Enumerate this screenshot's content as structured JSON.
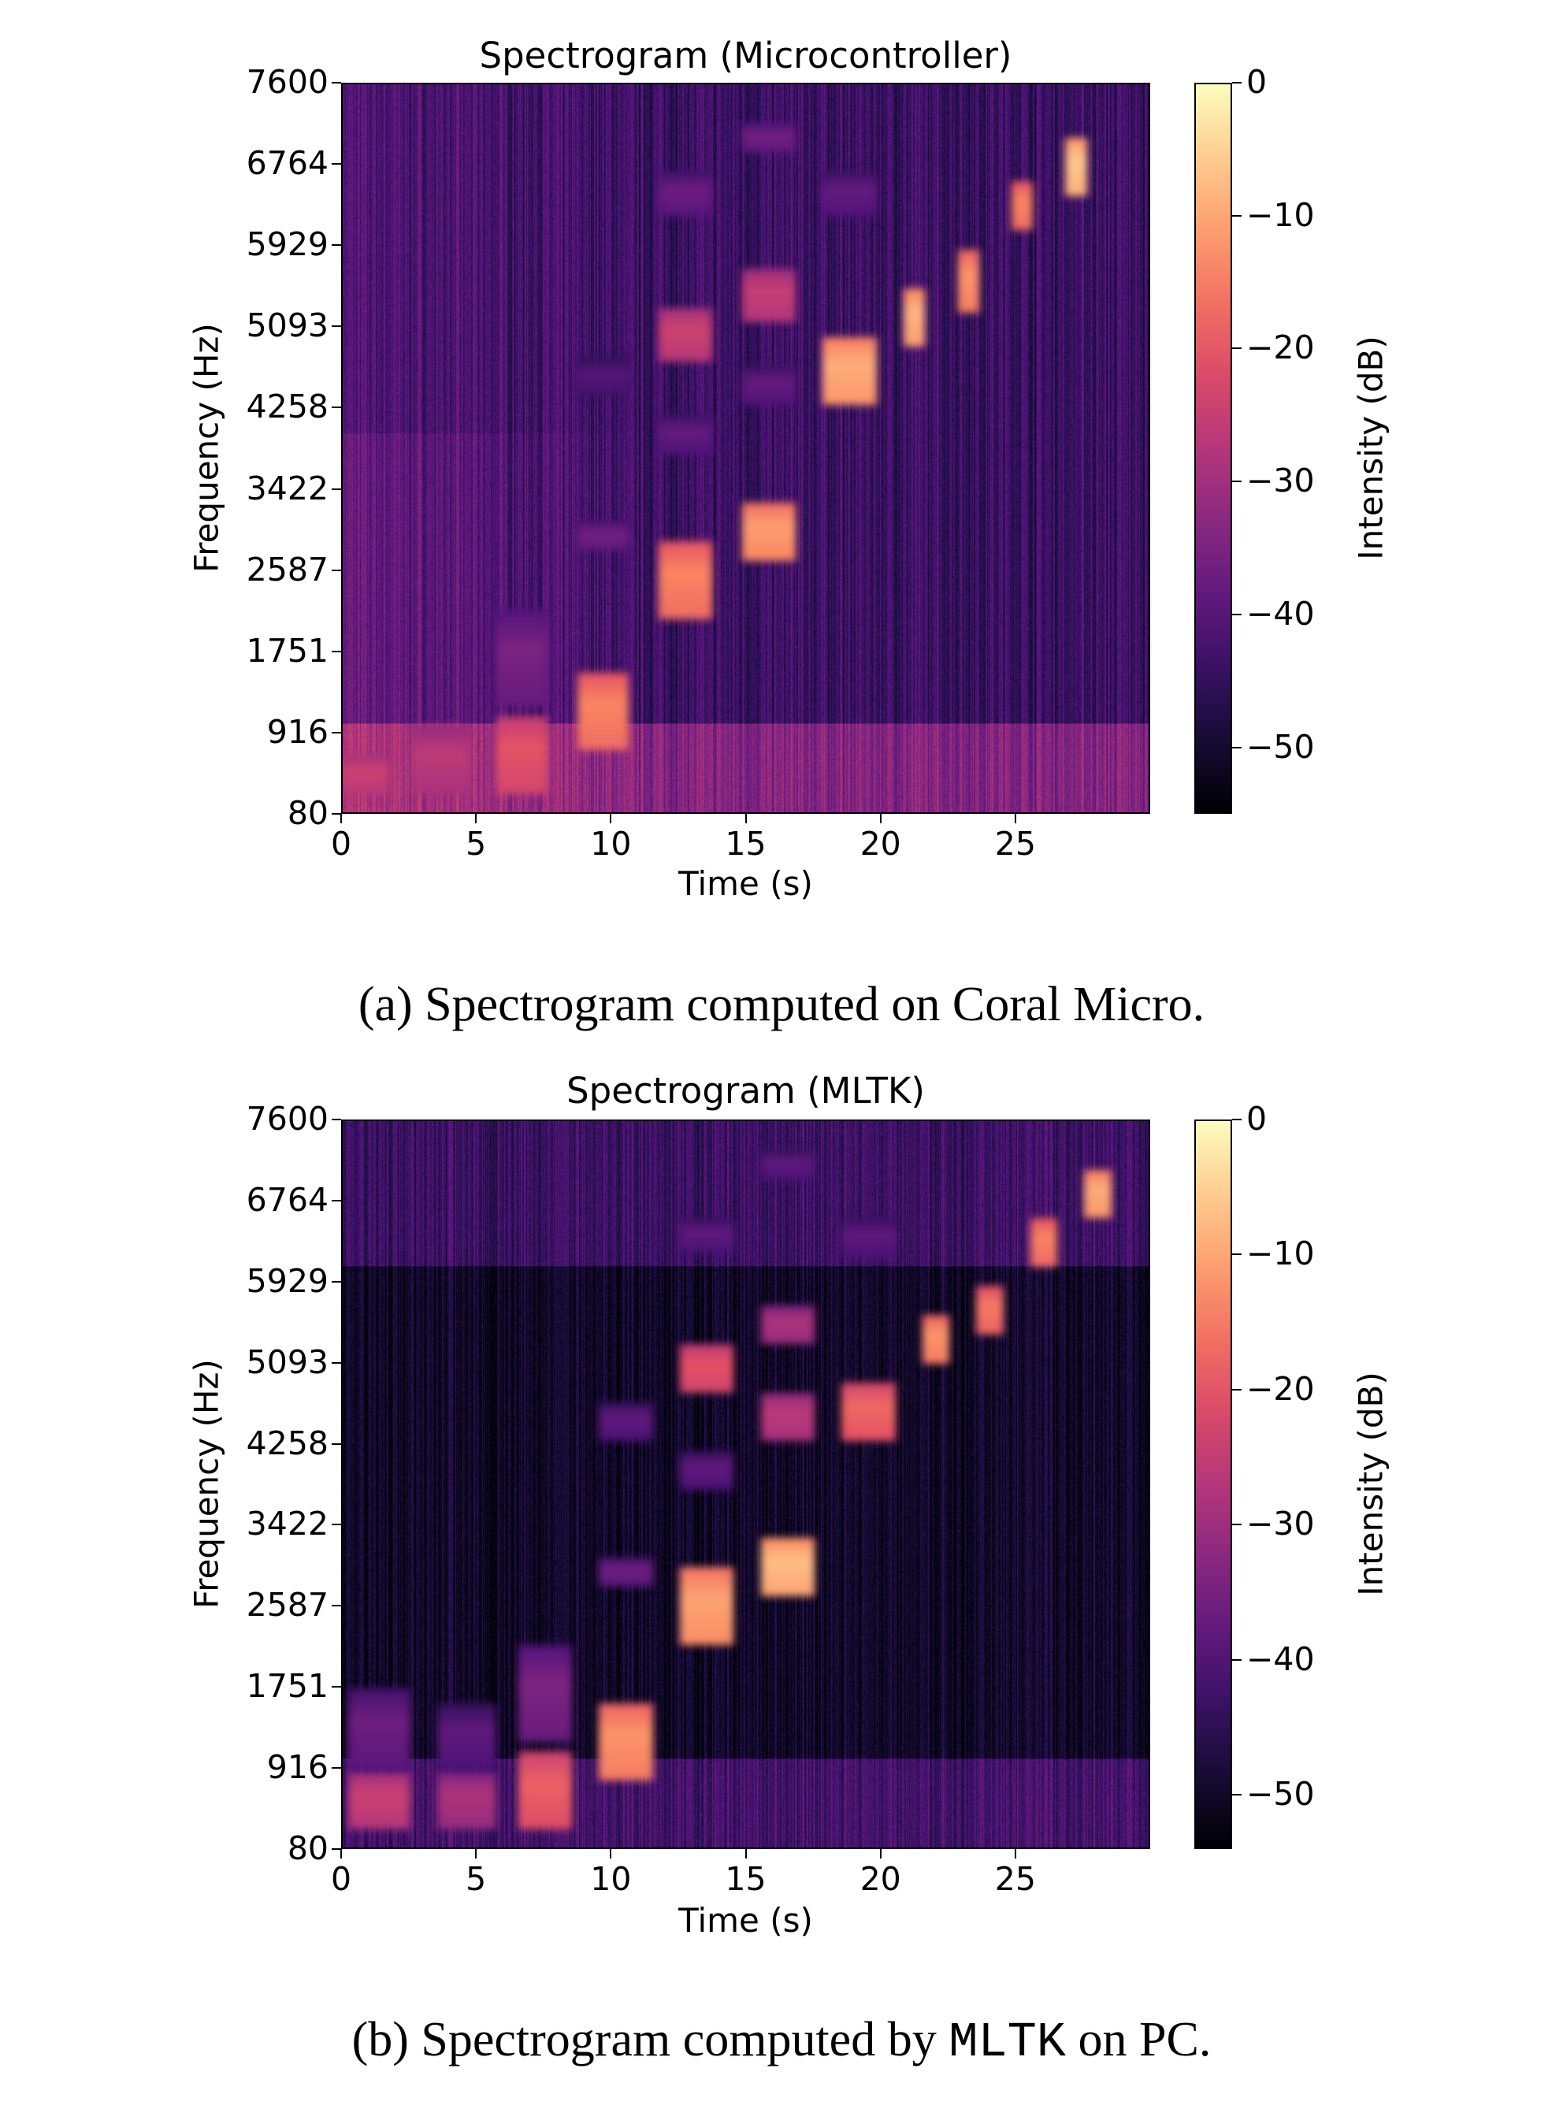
{
  "chart_data": [
    {
      "type": "heatmap",
      "title": "Spectrogram (Microcontroller)",
      "xlabel": "Time (s)",
      "ylabel": "Frequency (Hz)",
      "colorbar_label": "Intensity (dB)",
      "colormap": "magma",
      "xlim": [
        0,
        30
      ],
      "ylim": [
        80,
        7600
      ],
      "clim": [
        -55,
        0
      ],
      "xticks": [
        "0",
        "5",
        "10",
        "15",
        "20",
        "25"
      ],
      "yticks": [
        "80",
        "916",
        "1751",
        "2587",
        "3422",
        "4258",
        "5093",
        "5929",
        "6764",
        "7600"
      ],
      "cticks": [
        "0",
        "−10",
        "−20",
        "−30",
        "−40",
        "−50"
      ],
      "background": {
        "low_band_db": -34,
        "mid_db": -44,
        "high_db": -50
      },
      "events": [
        {
          "t": [
            0,
            1.7
          ],
          "f": [
            300,
            700
          ],
          "db": -24
        },
        {
          "t": [
            2.6,
            4.7
          ],
          "f": [
            300,
            1000
          ],
          "db": -26
        },
        {
          "t": [
            5.7,
            7.6
          ],
          "f": [
            300,
            1100
          ],
          "db": -20
        },
        {
          "t": [
            5.7,
            7.6
          ],
          "f": [
            1200,
            2200
          ],
          "db": -35
        },
        {
          "t": [
            8.7,
            10.6
          ],
          "f": [
            750,
            1550
          ],
          "db": -14
        },
        {
          "t": [
            8.7,
            10.6
          ],
          "f": [
            2800,
            3100
          ],
          "db": -36
        },
        {
          "t": [
            8.7,
            10.6
          ],
          "f": [
            4400,
            4800
          ],
          "db": -40
        },
        {
          "t": [
            11.7,
            13.7
          ],
          "f": [
            2100,
            2900
          ],
          "db": -14
        },
        {
          "t": [
            11.7,
            13.7
          ],
          "f": [
            4750,
            5300
          ],
          "db": -24
        },
        {
          "t": [
            11.7,
            13.7
          ],
          "f": [
            3800,
            4200
          ],
          "db": -38
        },
        {
          "t": [
            11.7,
            13.7
          ],
          "f": [
            6250,
            6700
          ],
          "db": -37
        },
        {
          "t": [
            14.8,
            16.8
          ],
          "f": [
            2700,
            3300
          ],
          "db": -11
        },
        {
          "t": [
            14.8,
            16.8
          ],
          "f": [
            5150,
            5700
          ],
          "db": -25
        },
        {
          "t": [
            14.8,
            16.8
          ],
          "f": [
            4300,
            4700
          ],
          "db": -38
        },
        {
          "t": [
            14.8,
            16.8
          ],
          "f": [
            6900,
            7200
          ],
          "db": -36
        },
        {
          "t": [
            17.8,
            19.8
          ],
          "f": [
            4300,
            5000
          ],
          "db": -9
        },
        {
          "t": [
            17.8,
            19.8
          ],
          "f": [
            6250,
            6700
          ],
          "db": -38
        },
        {
          "t": [
            20.8,
            21.6
          ],
          "f": [
            4900,
            5500
          ],
          "db": -8
        },
        {
          "t": [
            22.8,
            23.6
          ],
          "f": [
            5250,
            5900
          ],
          "db": -12
        },
        {
          "t": [
            24.8,
            25.6
          ],
          "f": [
            6100,
            6600
          ],
          "db": -14
        },
        {
          "t": [
            26.8,
            27.6
          ],
          "f": [
            6450,
            7050
          ],
          "db": -6
        }
      ]
    },
    {
      "type": "heatmap",
      "title": "Spectrogram (MLTK)",
      "xlabel": "Time (s)",
      "ylabel": "Frequency (Hz)",
      "colorbar_label": "Intensity (dB)",
      "colormap": "magma",
      "xlim": [
        0,
        30
      ],
      "ylim": [
        80,
        7600
      ],
      "clim": [
        -54,
        0
      ],
      "xticks": [
        "0",
        "5",
        "10",
        "15",
        "20",
        "25"
      ],
      "yticks": [
        "80",
        "916",
        "1751",
        "2587",
        "3422",
        "4258",
        "5093",
        "5929",
        "6764",
        "7600"
      ],
      "cticks": [
        "0",
        "−10",
        "−20",
        "−30",
        "−40",
        "−50"
      ],
      "background": {
        "low_band_db": -42,
        "mid_db": -50,
        "high_db": -43
      },
      "events": [
        {
          "t": [
            0.2,
            2.5
          ],
          "f": [
            300,
            900
          ],
          "db": -24
        },
        {
          "t": [
            0.2,
            2.5
          ],
          "f": [
            900,
            1750
          ],
          "db": -36
        },
        {
          "t": [
            3.5,
            5.7
          ],
          "f": [
            300,
            900
          ],
          "db": -28
        },
        {
          "t": [
            3.5,
            5.7
          ],
          "f": [
            900,
            1600
          ],
          "db": -38
        },
        {
          "t": [
            6.5,
            8.5
          ],
          "f": [
            300,
            1100
          ],
          "db": -18
        },
        {
          "t": [
            6.5,
            8.5
          ],
          "f": [
            1200,
            2200
          ],
          "db": -34
        },
        {
          "t": [
            9.5,
            11.5
          ],
          "f": [
            800,
            1600
          ],
          "db": -12
        },
        {
          "t": [
            9.5,
            11.5
          ],
          "f": [
            2800,
            3100
          ],
          "db": -36
        },
        {
          "t": [
            9.5,
            11.5
          ],
          "f": [
            4300,
            4700
          ],
          "db": -38
        },
        {
          "t": [
            12.5,
            14.5
          ],
          "f": [
            2200,
            3000
          ],
          "db": -10
        },
        {
          "t": [
            12.5,
            14.5
          ],
          "f": [
            4800,
            5300
          ],
          "db": -20
        },
        {
          "t": [
            12.5,
            14.5
          ],
          "f": [
            3800,
            4200
          ],
          "db": -38
        },
        {
          "t": [
            12.5,
            14.5
          ],
          "f": [
            6250,
            6600
          ],
          "db": -38
        },
        {
          "t": [
            15.5,
            17.5
          ],
          "f": [
            2700,
            3300
          ],
          "db": -7
        },
        {
          "t": [
            15.5,
            17.5
          ],
          "f": [
            4300,
            4800
          ],
          "db": -26
        },
        {
          "t": [
            15.5,
            17.5
          ],
          "f": [
            5300,
            5700
          ],
          "db": -28
        },
        {
          "t": [
            15.5,
            17.5
          ],
          "f": [
            7000,
            7300
          ],
          "db": -38
        },
        {
          "t": [
            18.5,
            20.5
          ],
          "f": [
            4300,
            4900
          ],
          "db": -17
        },
        {
          "t": [
            18.5,
            20.5
          ],
          "f": [
            6200,
            6600
          ],
          "db": -38
        },
        {
          "t": [
            21.5,
            22.5
          ],
          "f": [
            5100,
            5600
          ],
          "db": -12
        },
        {
          "t": [
            23.5,
            24.5
          ],
          "f": [
            5400,
            5900
          ],
          "db": -15
        },
        {
          "t": [
            25.5,
            26.5
          ],
          "f": [
            6100,
            6600
          ],
          "db": -14
        },
        {
          "t": [
            27.5,
            28.5
          ],
          "f": [
            6600,
            7100
          ],
          "db": -9
        }
      ]
    }
  ],
  "captions": {
    "a": "(a) Spectrogram computed on Coral Micro.",
    "b_prefix": "(b) Spectrogram computed by ",
    "b_code": "MLTK",
    "b_suffix": " on PC."
  }
}
